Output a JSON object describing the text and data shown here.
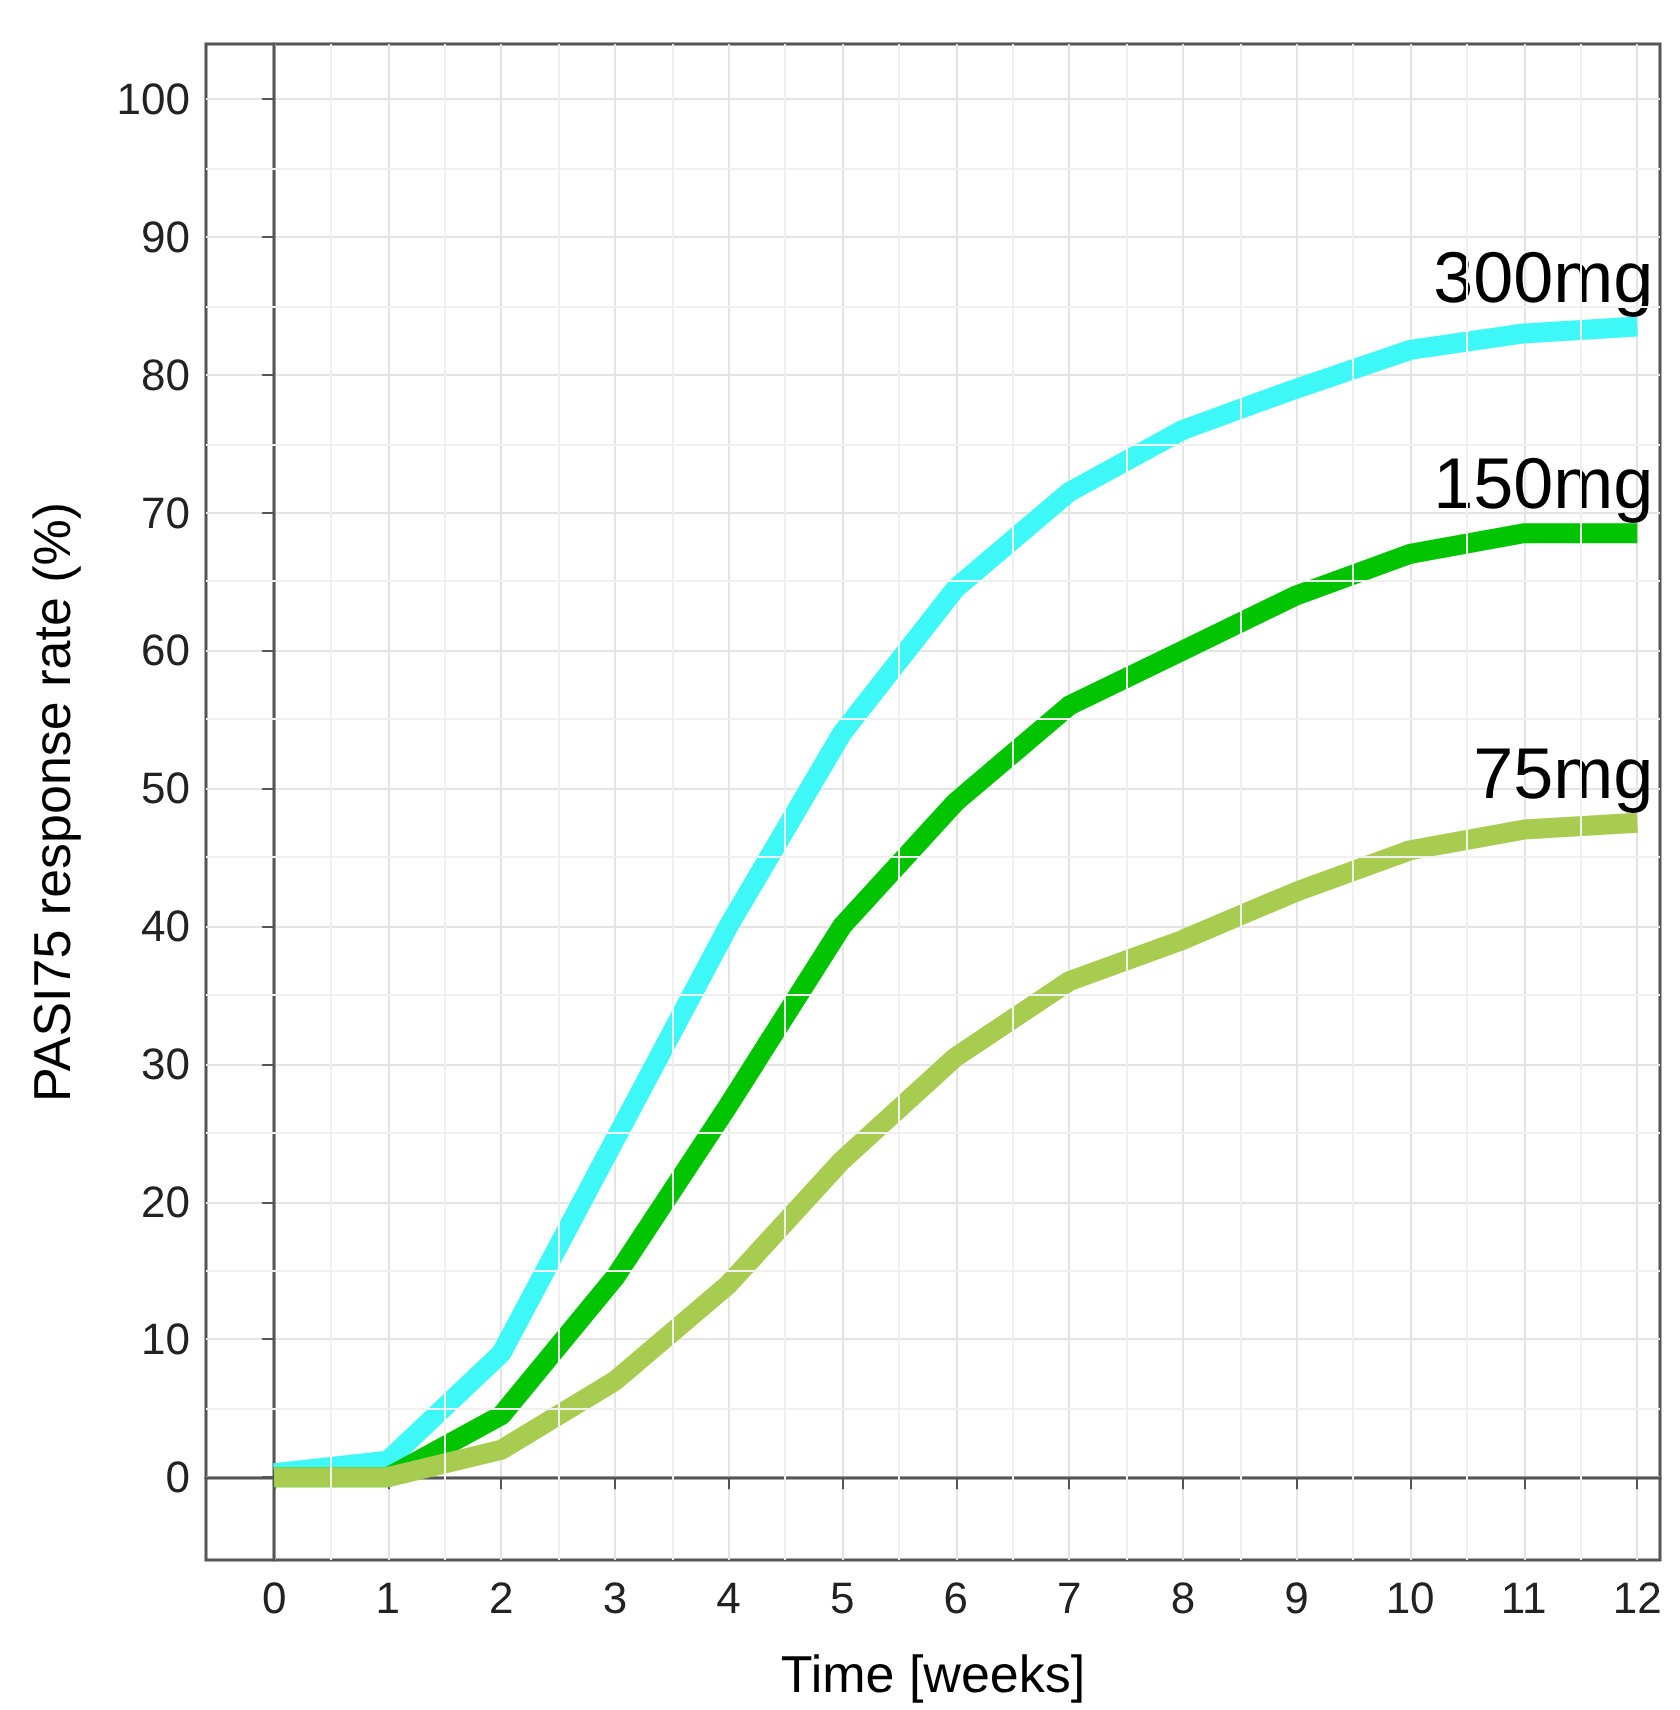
{
  "chart_data": {
    "type": "line",
    "xlabel": "Time [weeks]",
    "ylabel": "PASI75 response rate (%)",
    "x": [
      0,
      1,
      2,
      3,
      4,
      5,
      6,
      7,
      8,
      9,
      10,
      11,
      12
    ],
    "series": [
      {
        "name": "300mg",
        "color": "#3ef8f8",
        "values": [
          0.3,
          1.2,
          9,
          24.5,
          40,
          54,
          64.5,
          71.5,
          76,
          79,
          81.8,
          83,
          83.5
        ]
      },
      {
        "name": "150mg",
        "color": "#00c400",
        "values": [
          0,
          0,
          4.5,
          14.5,
          27,
          40,
          49,
          56,
          60,
          64,
          67,
          68.5,
          68.5
        ]
      },
      {
        "name": "75mg",
        "color": "#a8cc50",
        "values": [
          0,
          0,
          2,
          7,
          14,
          23,
          30.5,
          36,
          39,
          42.5,
          45.5,
          47,
          47.5
        ]
      }
    ],
    "xlim": [
      -0.6,
      12.2
    ],
    "xticks": [
      0,
      1,
      2,
      3,
      4,
      5,
      6,
      7,
      8,
      9,
      10,
      11,
      12
    ],
    "ylim": [
      -6,
      104
    ],
    "yticks": [
      0,
      10,
      20,
      30,
      40,
      50,
      60,
      70,
      80,
      90,
      100
    ],
    "grid": true,
    "legend": false,
    "marker": "none",
    "line_style": "solid"
  }
}
